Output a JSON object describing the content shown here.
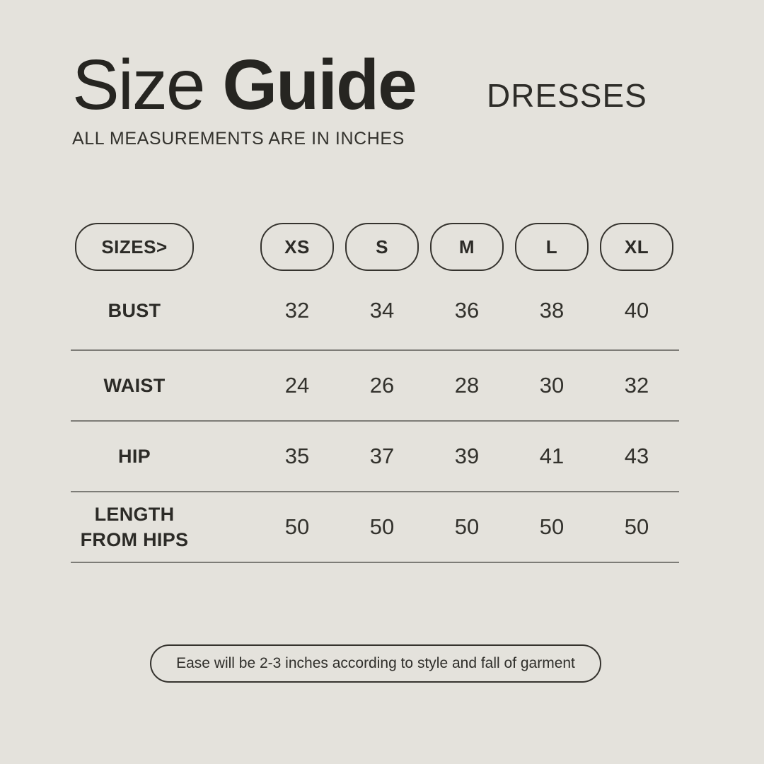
{
  "colors": {
    "background": "#e4e2dc",
    "text": "#2c2b27",
    "divider": "#7d7c77",
    "pill_border": "#35332e"
  },
  "header": {
    "title_regular": "Size",
    "title_bold": "Guide",
    "subtitle": "ALL MEASUREMENTS ARE IN INCHES",
    "category": "DRESSES"
  },
  "size_table": {
    "header_label": "SIZES>",
    "sizes": [
      "XS",
      "S",
      "M",
      "L",
      "XL"
    ],
    "rows": [
      {
        "label": "BUST",
        "values": [
          "32",
          "34",
          "36",
          "38",
          "40"
        ]
      },
      {
        "label": "WAIST",
        "values": [
          "24",
          "26",
          "28",
          "30",
          "32"
        ]
      },
      {
        "label": "HIP",
        "values": [
          "35",
          "37",
          "39",
          "41",
          "43"
        ]
      },
      {
        "label": "LENGTH FROM HIPS",
        "values": [
          "50",
          "50",
          "50",
          "50",
          "50"
        ]
      }
    ]
  },
  "footnote": "Ease will be 2-3 inches according to style and fall of garment"
}
